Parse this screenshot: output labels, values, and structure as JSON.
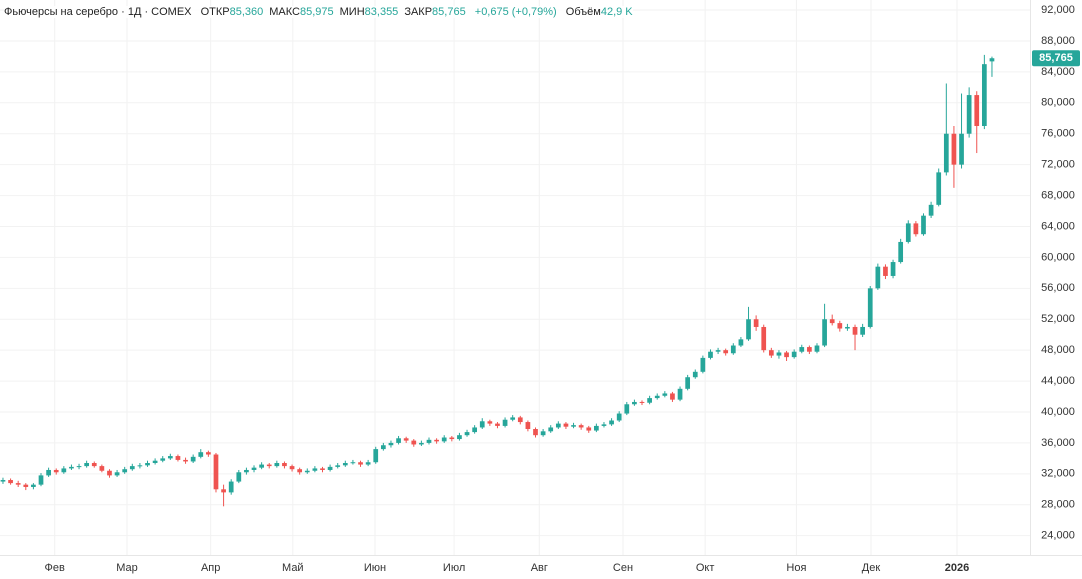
{
  "chart_data": {
    "type": "candlestick",
    "title": "Фьючерсы на серебро · 1Д · COMEX",
    "header_stats": [
      {
        "label": "ОТКР",
        "value": "85,360"
      },
      {
        "label": "МАКС",
        "value": "85,975"
      },
      {
        "label": "МИН",
        "value": "83,355"
      },
      {
        "label": "ЗАКР",
        "value": "85,765"
      }
    ],
    "change": "+0,675 (+0,79%)",
    "volume": {
      "label": "Объём",
      "value": "42,9 K"
    },
    "last_value_label": "85,765",
    "up_color": "#26a69a",
    "down_color": "#ef5350",
    "grid": true,
    "xlim": [
      -0.39,
      135
    ],
    "xticks": [
      {
        "value": 6.8,
        "label": "Фев"
      },
      {
        "value": 16.3,
        "label": "Мар"
      },
      {
        "value": 27.3,
        "label": "Апр"
      },
      {
        "value": 38.1,
        "label": "Май"
      },
      {
        "value": 48.9,
        "label": "Июн"
      },
      {
        "value": 59.3,
        "label": "Июл"
      },
      {
        "value": 70.5,
        "label": "Авг"
      },
      {
        "value": 81.5,
        "label": "Сен"
      },
      {
        "value": 92.3,
        "label": "Окт"
      },
      {
        "value": 104.3,
        "label": "Ноя"
      },
      {
        "value": 114.1,
        "label": "Дек"
      },
      {
        "value": 125.4,
        "label": "2026"
      }
    ],
    "ylim": [
      21.5,
      93.3
    ],
    "yticks": [
      {
        "value": 24,
        "label": "24,000"
      },
      {
        "value": 28,
        "label": "28,000"
      },
      {
        "value": 32,
        "label": "32,000"
      },
      {
        "value": 36,
        "label": "36,000"
      },
      {
        "value": 40,
        "label": "40,000"
      },
      {
        "value": 44,
        "label": "44,000"
      },
      {
        "value": 48,
        "label": "48,000"
      },
      {
        "value": 52,
        "label": "52,000"
      },
      {
        "value": 56,
        "label": "56,000"
      },
      {
        "value": 60,
        "label": "60,000"
      },
      {
        "value": 64,
        "label": "64,000"
      },
      {
        "value": 68,
        "label": "68,000"
      },
      {
        "value": 72,
        "label": "72,000"
      },
      {
        "value": 76,
        "label": "76,000"
      },
      {
        "value": 80,
        "label": "80,000"
      },
      {
        "value": 84,
        "label": "84,000"
      },
      {
        "value": 88,
        "label": "88,000"
      },
      {
        "value": 92,
        "label": "92,000"
      }
    ],
    "series": [
      {
        "open": [
          31,
          31.2,
          30.8,
          30.6,
          30.3,
          30.6,
          31.8,
          32.5,
          32.2,
          32.7,
          32.9,
          33,
          33.4,
          33,
          32.4,
          31.8,
          32.2,
          32.6,
          33,
          33.1,
          33.4,
          33.7,
          34,
          34.3,
          33.8,
          33.6,
          34.2,
          34.8,
          34.5,
          30,
          29.6,
          31,
          32.2,
          32.5,
          32.8,
          33.2,
          33,
          33.4,
          33,
          32.6,
          32.2,
          32.4,
          32.7,
          32.5,
          32.9,
          33.1,
          33.4,
          33.5,
          33.2,
          33.5,
          35.2,
          35.7,
          36,
          36.6,
          36.3,
          35.8,
          36,
          36.4,
          36.2,
          36.7,
          36.5,
          37,
          37.4,
          38,
          38.8,
          38.5,
          38.2,
          39,
          39.3,
          38.7,
          37.8,
          37,
          37.5,
          38,
          38.5,
          38.1,
          38.3,
          38,
          37.6,
          38.2,
          38.4,
          38.9,
          39.8,
          41,
          41.3,
          41.2,
          41.8,
          42.1,
          42.4,
          41.6,
          43,
          44.5,
          45.2,
          47,
          47.8,
          48,
          47.6,
          48.6,
          49.4,
          52,
          51,
          48,
          47.3,
          47.7,
          47.1,
          47.8,
          48.4,
          47.8,
          48.6,
          52,
          51.5,
          50.8,
          51,
          50,
          51,
          56,
          58.8,
          57.6,
          59.4,
          62,
          64.4,
          63,
          65.4,
          66.8,
          71,
          76,
          72,
          76,
          81,
          77,
          85.36
        ],
        "high": [
          31.5,
          31.4,
          31.1,
          30.8,
          30.8,
          32.1,
          32.8,
          32.7,
          33,
          33.2,
          33.3,
          33.7,
          33.6,
          33.2,
          32.6,
          32.5,
          32.9,
          33.3,
          33.4,
          33.7,
          34,
          34.3,
          34.6,
          34.5,
          34.1,
          34.5,
          35.2,
          35,
          34.7,
          30.6,
          31.3,
          32.5,
          32.8,
          33.1,
          33.5,
          33.4,
          33.7,
          33.6,
          33.2,
          32.8,
          32.7,
          33,
          32.9,
          33.2,
          33.4,
          33.7,
          33.8,
          33.7,
          33.8,
          35.5,
          36,
          36.3,
          36.9,
          36.8,
          36.5,
          36.3,
          36.7,
          36.6,
          37,
          36.9,
          37.3,
          37.7,
          38.3,
          39.2,
          39,
          38.7,
          39.3,
          39.6,
          39.5,
          38.9,
          38,
          37.8,
          38.3,
          38.8,
          38.7,
          38.6,
          38.5,
          38.2,
          38.5,
          38.7,
          39.2,
          40.1,
          41.3,
          41.6,
          41.5,
          42.1,
          42.4,
          42.7,
          42.6,
          43.3,
          44.8,
          45.5,
          47.3,
          48.1,
          48.3,
          48.2,
          48.9,
          49.7,
          53.6,
          52.5,
          51.3,
          48.3,
          48,
          47.9,
          48.1,
          48.7,
          48.6,
          48.9,
          54,
          52.6,
          51.8,
          51.4,
          51.3,
          51.4,
          56.3,
          59.2,
          59.1,
          59.7,
          62.4,
          64.8,
          64.7,
          65.7,
          67.2,
          71.5,
          82.5,
          77,
          81.2,
          82,
          81.5,
          86.2,
          85.975
        ],
        "low": [
          30.7,
          30.6,
          30.3,
          29.9,
          30,
          30.4,
          31.6,
          31.9,
          32,
          32.5,
          32.6,
          32.8,
          32.8,
          32.2,
          31.5,
          31.6,
          32,
          32.4,
          32.7,
          32.9,
          33.2,
          33.5,
          33.8,
          33.6,
          33.3,
          33.4,
          34,
          34.2,
          29.6,
          27.8,
          29.3,
          30.8,
          31.9,
          32.2,
          32.6,
          32.7,
          32.8,
          32.7,
          32.3,
          31.9,
          32,
          32.2,
          32.2,
          32.3,
          32.7,
          32.9,
          33.2,
          32.9,
          33,
          33.3,
          35,
          35.4,
          35.8,
          36,
          35.5,
          35.6,
          35.8,
          35.9,
          36,
          36.2,
          36.3,
          36.8,
          37.2,
          37.8,
          38.2,
          37.9,
          38,
          38.8,
          38.4,
          37.5,
          36.7,
          36.8,
          37.3,
          37.8,
          37.8,
          37.9,
          37.7,
          37.3,
          37.4,
          38,
          38.2,
          38.7,
          39.6,
          40.8,
          40.9,
          41,
          41.6,
          41.9,
          41.3,
          41.4,
          42.8,
          44.3,
          45,
          46.8,
          47.5,
          47.3,
          47.4,
          48.4,
          49.2,
          50.5,
          47.7,
          47,
          46.9,
          46.6,
          46.9,
          47.6,
          47.5,
          47.6,
          48.4,
          51.2,
          50.4,
          50.5,
          48,
          49.7,
          50.8,
          55.8,
          57.2,
          57.3,
          59.2,
          61.8,
          62.7,
          62.8,
          65.1,
          66.6,
          70.6,
          69,
          71.5,
          75.5,
          73.5,
          76.6,
          83.355
        ],
        "close": [
          31.2,
          30.8,
          30.6,
          30.3,
          30.6,
          31.8,
          32.5,
          32.2,
          32.7,
          32.9,
          33,
          33.4,
          33,
          32.4,
          31.8,
          32.2,
          32.6,
          33,
          33.1,
          33.4,
          33.7,
          34,
          34.3,
          33.8,
          33.6,
          34.2,
          34.8,
          34.5,
          30,
          29.6,
          31,
          32.2,
          32.5,
          32.8,
          33.2,
          33,
          33.4,
          33,
          32.6,
          32.2,
          32.4,
          32.7,
          32.5,
          32.9,
          33.1,
          33.4,
          33.5,
          33.2,
          33.5,
          35.2,
          35.7,
          36,
          36.6,
          36.3,
          35.8,
          36,
          36.4,
          36.2,
          36.7,
          36.5,
          37,
          37.4,
          38,
          38.8,
          38.5,
          38.2,
          39,
          39.3,
          38.7,
          37.8,
          37,
          37.5,
          38,
          38.5,
          38.1,
          38.3,
          38,
          37.6,
          38.2,
          38.4,
          38.9,
          39.8,
          41,
          41.3,
          41.2,
          41.8,
          42.1,
          42.4,
          41.6,
          43,
          44.5,
          45.2,
          47,
          47.8,
          48,
          47.6,
          48.6,
          49.4,
          52,
          51,
          48,
          47.3,
          47.7,
          47.1,
          47.8,
          48.4,
          47.8,
          48.6,
          52,
          51.5,
          50.8,
          51,
          50,
          51,
          56,
          58.8,
          57.6,
          59.4,
          62,
          64.4,
          63,
          65.4,
          66.8,
          71,
          76,
          72,
          76,
          81,
          77,
          85,
          85.765
        ]
      }
    ]
  }
}
